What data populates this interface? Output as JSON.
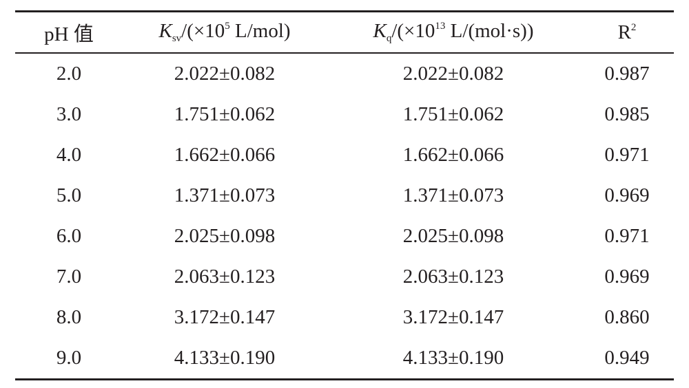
{
  "table": {
    "header": [
      [
        {
          "text": "pH 值",
          "format": "normal"
        }
      ],
      [
        {
          "text": "K",
          "format": "italic"
        },
        {
          "text": "sv",
          "format": "sub"
        },
        {
          "text": "/(×10",
          "format": "normal"
        },
        {
          "text": "5",
          "format": "sup"
        },
        {
          "text": " L/mol)",
          "format": "normal"
        }
      ],
      [
        {
          "text": "K",
          "format": "italic"
        },
        {
          "text": "q",
          "format": "sub"
        },
        {
          "text": "/(×10",
          "format": "normal"
        },
        {
          "text": "13",
          "format": "sup"
        },
        {
          "text": " L/(mol·s))",
          "format": "normal"
        }
      ],
      [
        {
          "text": "R",
          "format": "normal"
        },
        {
          "text": "2",
          "format": "sup"
        }
      ]
    ],
    "rows": [
      [
        "2.0",
        "2.022±0.082",
        "2.022±0.082",
        "0.987"
      ],
      [
        "3.0",
        "1.751±0.062",
        "1.751±0.062",
        "0.985"
      ],
      [
        "4.0",
        "1.662±0.066",
        "1.662±0.066",
        "0.971"
      ],
      [
        "5.0",
        "1.371±0.073",
        "1.371±0.073",
        "0.969"
      ],
      [
        "6.0",
        "2.025±0.098",
        "2.025±0.098",
        "0.971"
      ],
      [
        "7.0",
        "2.063±0.123",
        "2.063±0.123",
        "0.969"
      ],
      [
        "8.0",
        "3.172±0.147",
        "3.172±0.147",
        "0.860"
      ],
      [
        "9.0",
        "4.133±0.190",
        "4.133±0.190",
        "0.949"
      ]
    ]
  }
}
